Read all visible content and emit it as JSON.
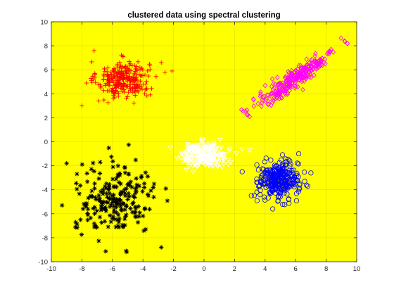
{
  "chart_data": {
    "type": "scatter",
    "title": "clustered data using spectral clustering",
    "xlabel": "",
    "ylabel": "",
    "xlim": [
      -10,
      10
    ],
    "ylim": [
      -10,
      10
    ],
    "xticks": [
      "-10",
      "-8",
      "-6",
      "-4",
      "-2",
      "0",
      "2",
      "4",
      "6",
      "8",
      "10"
    ],
    "yticks": [
      "-10",
      "-8",
      "-6",
      "-4",
      "-2",
      "0",
      "2",
      "4",
      "6",
      "8",
      "10"
    ],
    "grid": true,
    "legend": "none",
    "background_color": "#ffff00",
    "series": [
      {
        "marker": "plus",
        "color": "#ff0000",
        "center": [
          -5.3,
          5.2
        ],
        "spread": [
          0.85,
          0.75
        ],
        "count": 300,
        "outliers": [
          [
            -8.0,
            3.0
          ],
          [
            -2.1,
            5.9
          ],
          [
            -7.2,
            7.6
          ],
          [
            -2.8,
            6.6
          ],
          [
            -6.9,
            3.4
          ]
        ]
      },
      {
        "marker": "diamond",
        "color": "#ff00ff",
        "start": [
          2.8,
          2.3
        ],
        "end": [
          9.2,
          8.4
        ],
        "width": 0.32,
        "count": 300
      },
      {
        "marker": "triangle-down",
        "color": "#ffffff",
        "center": [
          0.0,
          -1.1
        ],
        "spread": [
          0.75,
          0.5
        ],
        "count": 260,
        "outliers": [
          [
            -2.2,
            -0.5
          ],
          [
            2.5,
            -0.6
          ],
          [
            -0.1,
            0.2
          ],
          [
            3.0,
            -0.7
          ]
        ]
      },
      {
        "marker": "circle",
        "color": "#0000ff",
        "center": [
          4.9,
          -3.2
        ],
        "spread": [
          0.65,
          0.75
        ],
        "count": 320,
        "outliers": [
          [
            2.5,
            -2.5
          ],
          [
            6.2,
            -1.0
          ],
          [
            4.5,
            -5.6
          ],
          [
            7.0,
            -2.6
          ],
          [
            3.1,
            -4.5
          ]
        ]
      },
      {
        "marker": "asterisk",
        "color": "#000000",
        "center": [
          -5.8,
          -4.9
        ],
        "spread": [
          1.3,
          1.4
        ],
        "count": 220,
        "outliers": [
          [
            -9.0,
            -1.8
          ],
          [
            -9.3,
            -5.3
          ],
          [
            -2.8,
            -8.8
          ],
          [
            -5.1,
            -9.1
          ],
          [
            -2.5,
            -3.9
          ],
          [
            -6.8,
            -1.7
          ]
        ]
      }
    ]
  }
}
